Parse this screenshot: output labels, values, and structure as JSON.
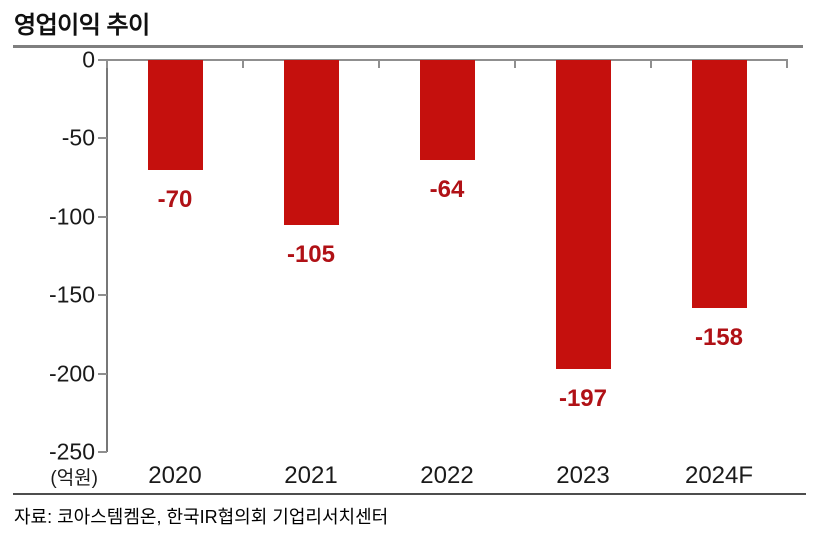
{
  "page": {
    "title": "영업이익 추이",
    "source": "자료: 코아스템켐온, 한국IR협의회 기업리서치센터"
  },
  "chart_data": {
    "type": "bar",
    "title": "영업이익 추이",
    "unit_label": "(억원)",
    "categories": [
      "2020",
      "2021",
      "2022",
      "2023",
      "2024F"
    ],
    "values": [
      -70,
      -105,
      -64,
      -197,
      -158
    ],
    "value_labels": [
      "-70",
      "-105",
      "-64",
      "-197",
      "-158"
    ],
    "xlabel": "",
    "ylabel": "",
    "ylim": [
      -250,
      0
    ],
    "yticks": [
      0,
      -50,
      -100,
      -150,
      -200,
      -250
    ],
    "grid": false,
    "legend": "none",
    "bar_color": "#c5100d",
    "value_label_color": "#b01116",
    "axis_color": "#8f8f8f",
    "source": "자료: 코아스템켐온, 한국IR협의회 기업리서치센터"
  }
}
